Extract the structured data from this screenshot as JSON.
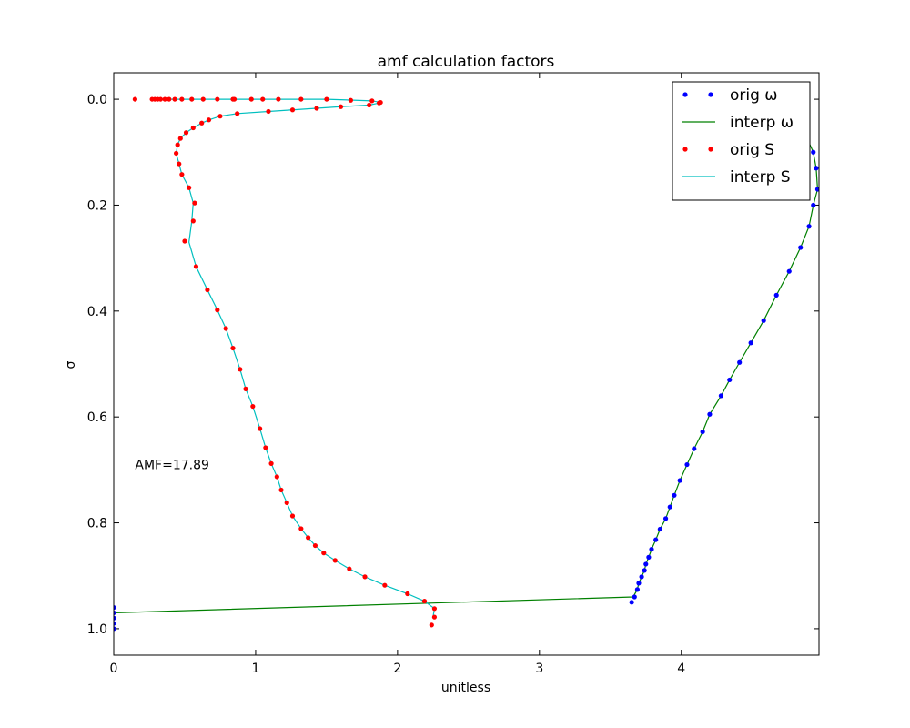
{
  "chart_data": {
    "type": "line",
    "title": "amf calculation factors",
    "xlabel": "unitless",
    "ylabel": "σ",
    "xlim": [
      0,
      4.97
    ],
    "ylim": [
      1.05,
      -0.05
    ],
    "y_inverted": true,
    "grid": false,
    "legend_position": "top-right",
    "x_ticks": [
      0,
      1,
      2,
      3,
      4
    ],
    "x_tick_labels": [
      "0",
      "1",
      "2",
      "3",
      "4"
    ],
    "y_ticks": [
      0.0,
      0.2,
      0.4,
      0.6,
      0.8,
      1.0
    ],
    "y_tick_labels": [
      "0.0",
      "0.2",
      "0.4",
      "0.6",
      "0.8",
      "1.0"
    ],
    "annotation": {
      "text": "AMF=17.89",
      "x": 0.15,
      "y": 0.69
    },
    "legend": [
      {
        "label": "orig ω",
        "kind": "marker",
        "color": "#0000ff"
      },
      {
        "label": "interp ω",
        "kind": "line",
        "color": "#008000"
      },
      {
        "label": "orig S",
        "kind": "marker",
        "color": "#ff0000"
      },
      {
        "label": "interp S",
        "kind": "line",
        "color": "#00bfbf"
      }
    ],
    "series": [
      {
        "name": "orig ω",
        "style": "marker",
        "color": "#0000ff",
        "points": [
          [
            4.88,
            0.07
          ],
          [
            4.93,
            0.1
          ],
          [
            4.95,
            0.13
          ],
          [
            4.96,
            0.17
          ],
          [
            4.93,
            0.2
          ],
          [
            4.9,
            0.24
          ],
          [
            4.84,
            0.28
          ],
          [
            4.76,
            0.325
          ],
          [
            4.67,
            0.37
          ],
          [
            4.58,
            0.418
          ],
          [
            4.49,
            0.46
          ],
          [
            4.41,
            0.497
          ],
          [
            4.34,
            0.53
          ],
          [
            4.28,
            0.56
          ],
          [
            4.2,
            0.595
          ],
          [
            4.15,
            0.628
          ],
          [
            4.09,
            0.66
          ],
          [
            4.04,
            0.69
          ],
          [
            3.99,
            0.72
          ],
          [
            3.95,
            0.748
          ],
          [
            3.92,
            0.77
          ],
          [
            3.89,
            0.792
          ],
          [
            3.85,
            0.812
          ],
          [
            3.82,
            0.832
          ],
          [
            3.79,
            0.85
          ],
          [
            3.77,
            0.865
          ],
          [
            3.75,
            0.878
          ],
          [
            3.74,
            0.89
          ],
          [
            3.72,
            0.902
          ],
          [
            3.7,
            0.914
          ],
          [
            3.69,
            0.926
          ],
          [
            3.67,
            0.94
          ],
          [
            3.65,
            0.95
          ],
          [
            0,
            0.96
          ],
          [
            0,
            0.97
          ],
          [
            0,
            0.98
          ],
          [
            0,
            0.99
          ],
          [
            0,
            1.0
          ]
        ]
      },
      {
        "name": "interp ω",
        "style": "line",
        "color": "#008000",
        "points": [
          [
            4.88,
            0.07
          ],
          [
            4.93,
            0.1
          ],
          [
            4.95,
            0.13
          ],
          [
            4.96,
            0.17
          ],
          [
            4.93,
            0.2
          ],
          [
            4.9,
            0.24
          ],
          [
            4.84,
            0.28
          ],
          [
            4.76,
            0.325
          ],
          [
            4.67,
            0.37
          ],
          [
            4.58,
            0.418
          ],
          [
            4.49,
            0.46
          ],
          [
            4.41,
            0.497
          ],
          [
            4.34,
            0.53
          ],
          [
            4.28,
            0.56
          ],
          [
            4.2,
            0.595
          ],
          [
            4.15,
            0.628
          ],
          [
            4.09,
            0.66
          ],
          [
            4.04,
            0.69
          ],
          [
            3.99,
            0.72
          ],
          [
            3.95,
            0.748
          ],
          [
            3.92,
            0.77
          ],
          [
            3.89,
            0.792
          ],
          [
            3.85,
            0.812
          ],
          [
            3.82,
            0.832
          ],
          [
            3.79,
            0.85
          ],
          [
            3.77,
            0.865
          ],
          [
            3.75,
            0.878
          ],
          [
            3.74,
            0.89
          ],
          [
            3.72,
            0.902
          ],
          [
            3.7,
            0.914
          ],
          [
            3.69,
            0.926
          ],
          [
            3.66,
            0.94
          ],
          [
            0,
            0.97
          ]
        ]
      },
      {
        "name": "orig S",
        "style": "marker",
        "color": "#ff0000",
        "points": [
          [
            0.15,
            0.0
          ],
          [
            0.27,
            0.0
          ],
          [
            0.29,
            0.0
          ],
          [
            0.31,
            0.0
          ],
          [
            0.33,
            0.0
          ],
          [
            0.36,
            0.0
          ],
          [
            0.39,
            0.0
          ],
          [
            0.43,
            0.0
          ],
          [
            0.48,
            0.0
          ],
          [
            0.55,
            0.0
          ],
          [
            0.63,
            0.0
          ],
          [
            0.73,
            0.0
          ],
          [
            0.84,
            0.0
          ],
          [
            0.85,
            0.0
          ],
          [
            0.97,
            0.0
          ],
          [
            1.05,
            0.0
          ],
          [
            1.16,
            0.0
          ],
          [
            1.32,
            0.0
          ],
          [
            1.5,
            0.0
          ],
          [
            1.67,
            0.002
          ],
          [
            1.82,
            0.003
          ],
          [
            1.88,
            0.006
          ],
          [
            1.87,
            0.007
          ],
          [
            1.8,
            0.011
          ],
          [
            1.6,
            0.014
          ],
          [
            1.43,
            0.017
          ],
          [
            1.26,
            0.02
          ],
          [
            1.09,
            0.023
          ],
          [
            0.87,
            0.027
          ],
          [
            0.75,
            0.032
          ],
          [
            0.67,
            0.039
          ],
          [
            0.62,
            0.045
          ],
          [
            0.56,
            0.054
          ],
          [
            0.51,
            0.063
          ],
          [
            0.47,
            0.074
          ],
          [
            0.45,
            0.086
          ],
          [
            0.44,
            0.102
          ],
          [
            0.46,
            0.122
          ],
          [
            0.48,
            0.142
          ],
          [
            0.53,
            0.167
          ],
          [
            0.57,
            0.196
          ],
          [
            0.56,
            0.23
          ],
          [
            0.5,
            0.268
          ],
          [
            0.58,
            0.316
          ],
          [
            0.66,
            0.36
          ],
          [
            0.73,
            0.398
          ],
          [
            0.79,
            0.433
          ],
          [
            0.84,
            0.47
          ],
          [
            0.89,
            0.51
          ],
          [
            0.93,
            0.547
          ],
          [
            0.98,
            0.58
          ],
          [
            1.03,
            0.622
          ],
          [
            1.07,
            0.658
          ],
          [
            1.11,
            0.688
          ],
          [
            1.15,
            0.713
          ],
          [
            1.18,
            0.738
          ],
          [
            1.22,
            0.762
          ],
          [
            1.26,
            0.787
          ],
          [
            1.32,
            0.811
          ],
          [
            1.37,
            0.828
          ],
          [
            1.42,
            0.843
          ],
          [
            1.48,
            0.857
          ],
          [
            1.56,
            0.871
          ],
          [
            1.66,
            0.887
          ],
          [
            1.77,
            0.902
          ],
          [
            1.91,
            0.918
          ],
          [
            2.07,
            0.934
          ],
          [
            2.19,
            0.948
          ],
          [
            2.26,
            0.962
          ],
          [
            2.26,
            0.978
          ],
          [
            2.24,
            0.993
          ]
        ]
      },
      {
        "name": "interp S",
        "style": "line",
        "color": "#00bfbf",
        "points": [
          [
            0.27,
            0.0
          ],
          [
            0.55,
            0.0
          ],
          [
            0.84,
            0.0
          ],
          [
            1.16,
            0.0
          ],
          [
            1.5,
            0.0
          ],
          [
            1.82,
            0.003
          ],
          [
            1.88,
            0.006
          ],
          [
            1.87,
            0.007
          ],
          [
            1.8,
            0.011
          ],
          [
            1.6,
            0.014
          ],
          [
            1.43,
            0.017
          ],
          [
            1.26,
            0.02
          ],
          [
            1.09,
            0.023
          ],
          [
            0.87,
            0.027
          ],
          [
            0.75,
            0.032
          ],
          [
            0.67,
            0.039
          ],
          [
            0.62,
            0.045
          ],
          [
            0.56,
            0.054
          ],
          [
            0.51,
            0.063
          ],
          [
            0.47,
            0.074
          ],
          [
            0.45,
            0.086
          ],
          [
            0.44,
            0.102
          ],
          [
            0.46,
            0.122
          ],
          [
            0.48,
            0.142
          ],
          [
            0.53,
            0.167
          ],
          [
            0.56,
            0.196
          ],
          [
            0.55,
            0.23
          ],
          [
            0.53,
            0.27
          ],
          [
            0.58,
            0.316
          ],
          [
            0.66,
            0.36
          ],
          [
            0.73,
            0.398
          ],
          [
            0.79,
            0.433
          ],
          [
            0.84,
            0.47
          ],
          [
            0.89,
            0.51
          ],
          [
            0.93,
            0.547
          ],
          [
            0.98,
            0.58
          ],
          [
            1.03,
            0.622
          ],
          [
            1.07,
            0.658
          ],
          [
            1.11,
            0.688
          ],
          [
            1.15,
            0.713
          ],
          [
            1.18,
            0.738
          ],
          [
            1.22,
            0.762
          ],
          [
            1.26,
            0.787
          ],
          [
            1.32,
            0.811
          ],
          [
            1.37,
            0.828
          ],
          [
            1.42,
            0.843
          ],
          [
            1.48,
            0.857
          ],
          [
            1.56,
            0.871
          ],
          [
            1.66,
            0.887
          ],
          [
            1.77,
            0.902
          ],
          [
            1.91,
            0.918
          ],
          [
            2.07,
            0.934
          ],
          [
            2.19,
            0.948
          ],
          [
            2.26,
            0.962
          ],
          [
            2.25,
            0.978
          ]
        ]
      }
    ]
  }
}
